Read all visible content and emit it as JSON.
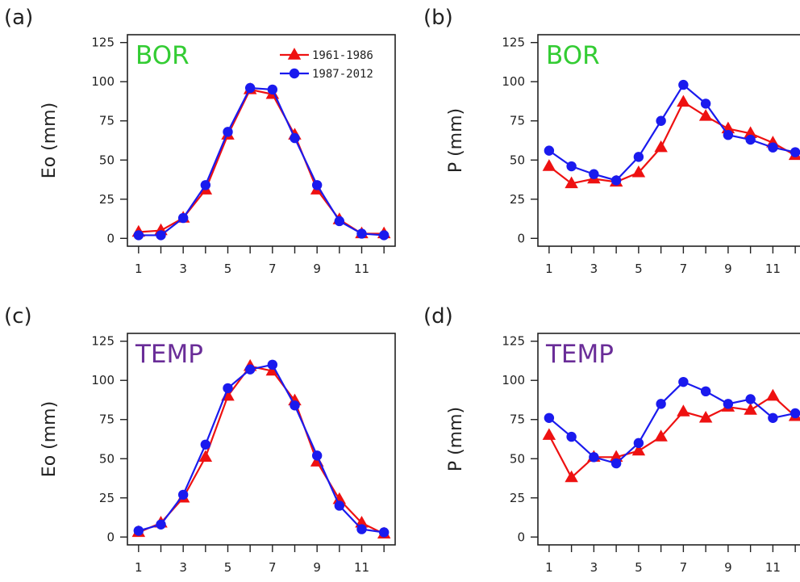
{
  "colors": {
    "series_1961_1986": "#ee1111",
    "series_1987_2012": "#1a1aee",
    "BOR": "#33cc33",
    "TEMP": "#6a2d98",
    "axis": "#222222"
  },
  "legend": {
    "entries": [
      "1961-1986",
      "1987-2012"
    ],
    "markers": [
      "triangle",
      "circle"
    ],
    "placement": "top-right of panel (a)"
  },
  "chart_data": [
    {
      "panel": "(a)",
      "region": "BOR",
      "type": "line",
      "ylabel": "Eo (mm)",
      "xlabel": "",
      "x": [
        1,
        2,
        3,
        4,
        5,
        6,
        7,
        8,
        9,
        10,
        11,
        12
      ],
      "xticks": [
        1,
        3,
        5,
        7,
        9,
        11
      ],
      "yticks": [
        0,
        25,
        50,
        75,
        100,
        125
      ],
      "xlim": [
        0.5,
        12.5
      ],
      "ylim": [
        -5,
        130
      ],
      "series": [
        {
          "name": "1961-1986",
          "marker": "triangle",
          "values": [
            4,
            5,
            13,
            31,
            66,
            95,
            92,
            66,
            31,
            12,
            3,
            3
          ]
        },
        {
          "name": "1987-2012",
          "marker": "circle",
          "values": [
            2,
            2,
            13,
            34,
            68,
            96,
            95,
            64,
            34,
            11,
            3,
            2
          ]
        }
      ]
    },
    {
      "panel": "(b)",
      "region": "BOR",
      "type": "line",
      "ylabel": "P (mm)",
      "xlabel": "",
      "x": [
        1,
        2,
        3,
        4,
        5,
        6,
        7,
        8,
        9,
        10,
        11,
        12
      ],
      "xticks": [
        1,
        3,
        5,
        7,
        9,
        11
      ],
      "yticks": [
        0,
        25,
        50,
        75,
        100,
        125
      ],
      "xlim": [
        0.5,
        12.5
      ],
      "ylim": [
        -5,
        130
      ],
      "series": [
        {
          "name": "1961-1986",
          "marker": "triangle",
          "values": [
            46,
            35,
            38,
            36,
            42,
            58,
            87,
            78,
            70,
            67,
            61,
            53
          ]
        },
        {
          "name": "1987-2012",
          "marker": "circle",
          "values": [
            56,
            46,
            41,
            37,
            52,
            75,
            98,
            86,
            66,
            63,
            58,
            55
          ]
        }
      ]
    },
    {
      "panel": "(c)",
      "region": "TEMP",
      "type": "line",
      "ylabel": "Eo (mm)",
      "xlabel": "",
      "x": [
        1,
        2,
        3,
        4,
        5,
        6,
        7,
        8,
        9,
        10,
        11,
        12
      ],
      "xticks": [
        1,
        3,
        5,
        7,
        9,
        11
      ],
      "yticks": [
        0,
        25,
        50,
        75,
        100,
        125
      ],
      "xlim": [
        0.5,
        12.5
      ],
      "ylim": [
        -5,
        130
      ],
      "series": [
        {
          "name": "1961-1986",
          "marker": "triangle",
          "values": [
            3,
            9,
            25,
            51,
            90,
            109,
            106,
            87,
            48,
            24,
            9,
            2
          ]
        },
        {
          "name": "1987-2012",
          "marker": "circle",
          "values": [
            4,
            8,
            27,
            59,
            95,
            107,
            110,
            84,
            52,
            20,
            5,
            3
          ]
        }
      ]
    },
    {
      "panel": "(d)",
      "region": "TEMP",
      "type": "line",
      "ylabel": "P (mm)",
      "xlabel": "",
      "x": [
        1,
        2,
        3,
        4,
        5,
        6,
        7,
        8,
        9,
        10,
        11,
        12
      ],
      "xticks": [
        1,
        3,
        5,
        7,
        9,
        11
      ],
      "yticks": [
        0,
        25,
        50,
        75,
        100,
        125
      ],
      "xlim": [
        0.5,
        12.5
      ],
      "ylim": [
        -5,
        130
      ],
      "series": [
        {
          "name": "1961-1986",
          "marker": "triangle",
          "values": [
            65,
            38,
            51,
            51,
            55,
            64,
            80,
            76,
            83,
            81,
            90,
            77
          ]
        },
        {
          "name": "1987-2012",
          "marker": "circle",
          "values": [
            76,
            64,
            51,
            47,
            60,
            85,
            99,
            93,
            85,
            88,
            76,
            79
          ]
        }
      ]
    }
  ]
}
